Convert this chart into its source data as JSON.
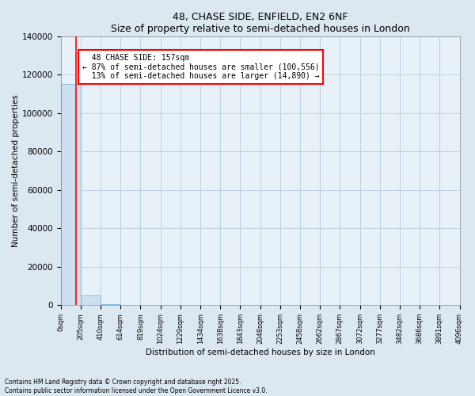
{
  "title": "48, CHASE SIDE, ENFIELD, EN2 6NF",
  "subtitle": "Size of property relative to semi-detached houses in London",
  "xlabel": "Distribution of semi-detached houses by size in London",
  "ylabel": "Number of semi-detached properties",
  "bin_edges": [
    0,
    205,
    410,
    614,
    819,
    1024,
    1229,
    1434,
    1638,
    1843,
    2048,
    2253,
    2458,
    2662,
    2867,
    3072,
    3277,
    3482,
    3686,
    3891,
    4096
  ],
  "bar_heights": [
    115000,
    5000,
    500,
    150,
    80,
    40,
    25,
    15,
    10,
    8,
    6,
    5,
    4,
    3,
    3,
    2,
    2,
    2,
    1,
    1
  ],
  "bar_color": "#cce0f0",
  "bar_edgecolor": "#6baed6",
  "property_size": 157,
  "property_label": "48 CHASE SIDE: 157sqm",
  "smaller_pct": 87,
  "smaller_count": 100556,
  "larger_pct": 13,
  "larger_count": 14890,
  "vline_color": "red",
  "annotation_box_color": "red",
  "ylim": [
    0,
    140000
  ],
  "yticks": [
    0,
    20000,
    40000,
    60000,
    80000,
    100000,
    120000,
    140000
  ],
  "footer1": "Contains HM Land Registry data © Crown copyright and database right 2025.",
  "footer2": "Contains public sector information licensed under the Open Government Licence v3.0.",
  "bg_color": "#dce8f0",
  "plot_bg_color": "#e8f0f8"
}
